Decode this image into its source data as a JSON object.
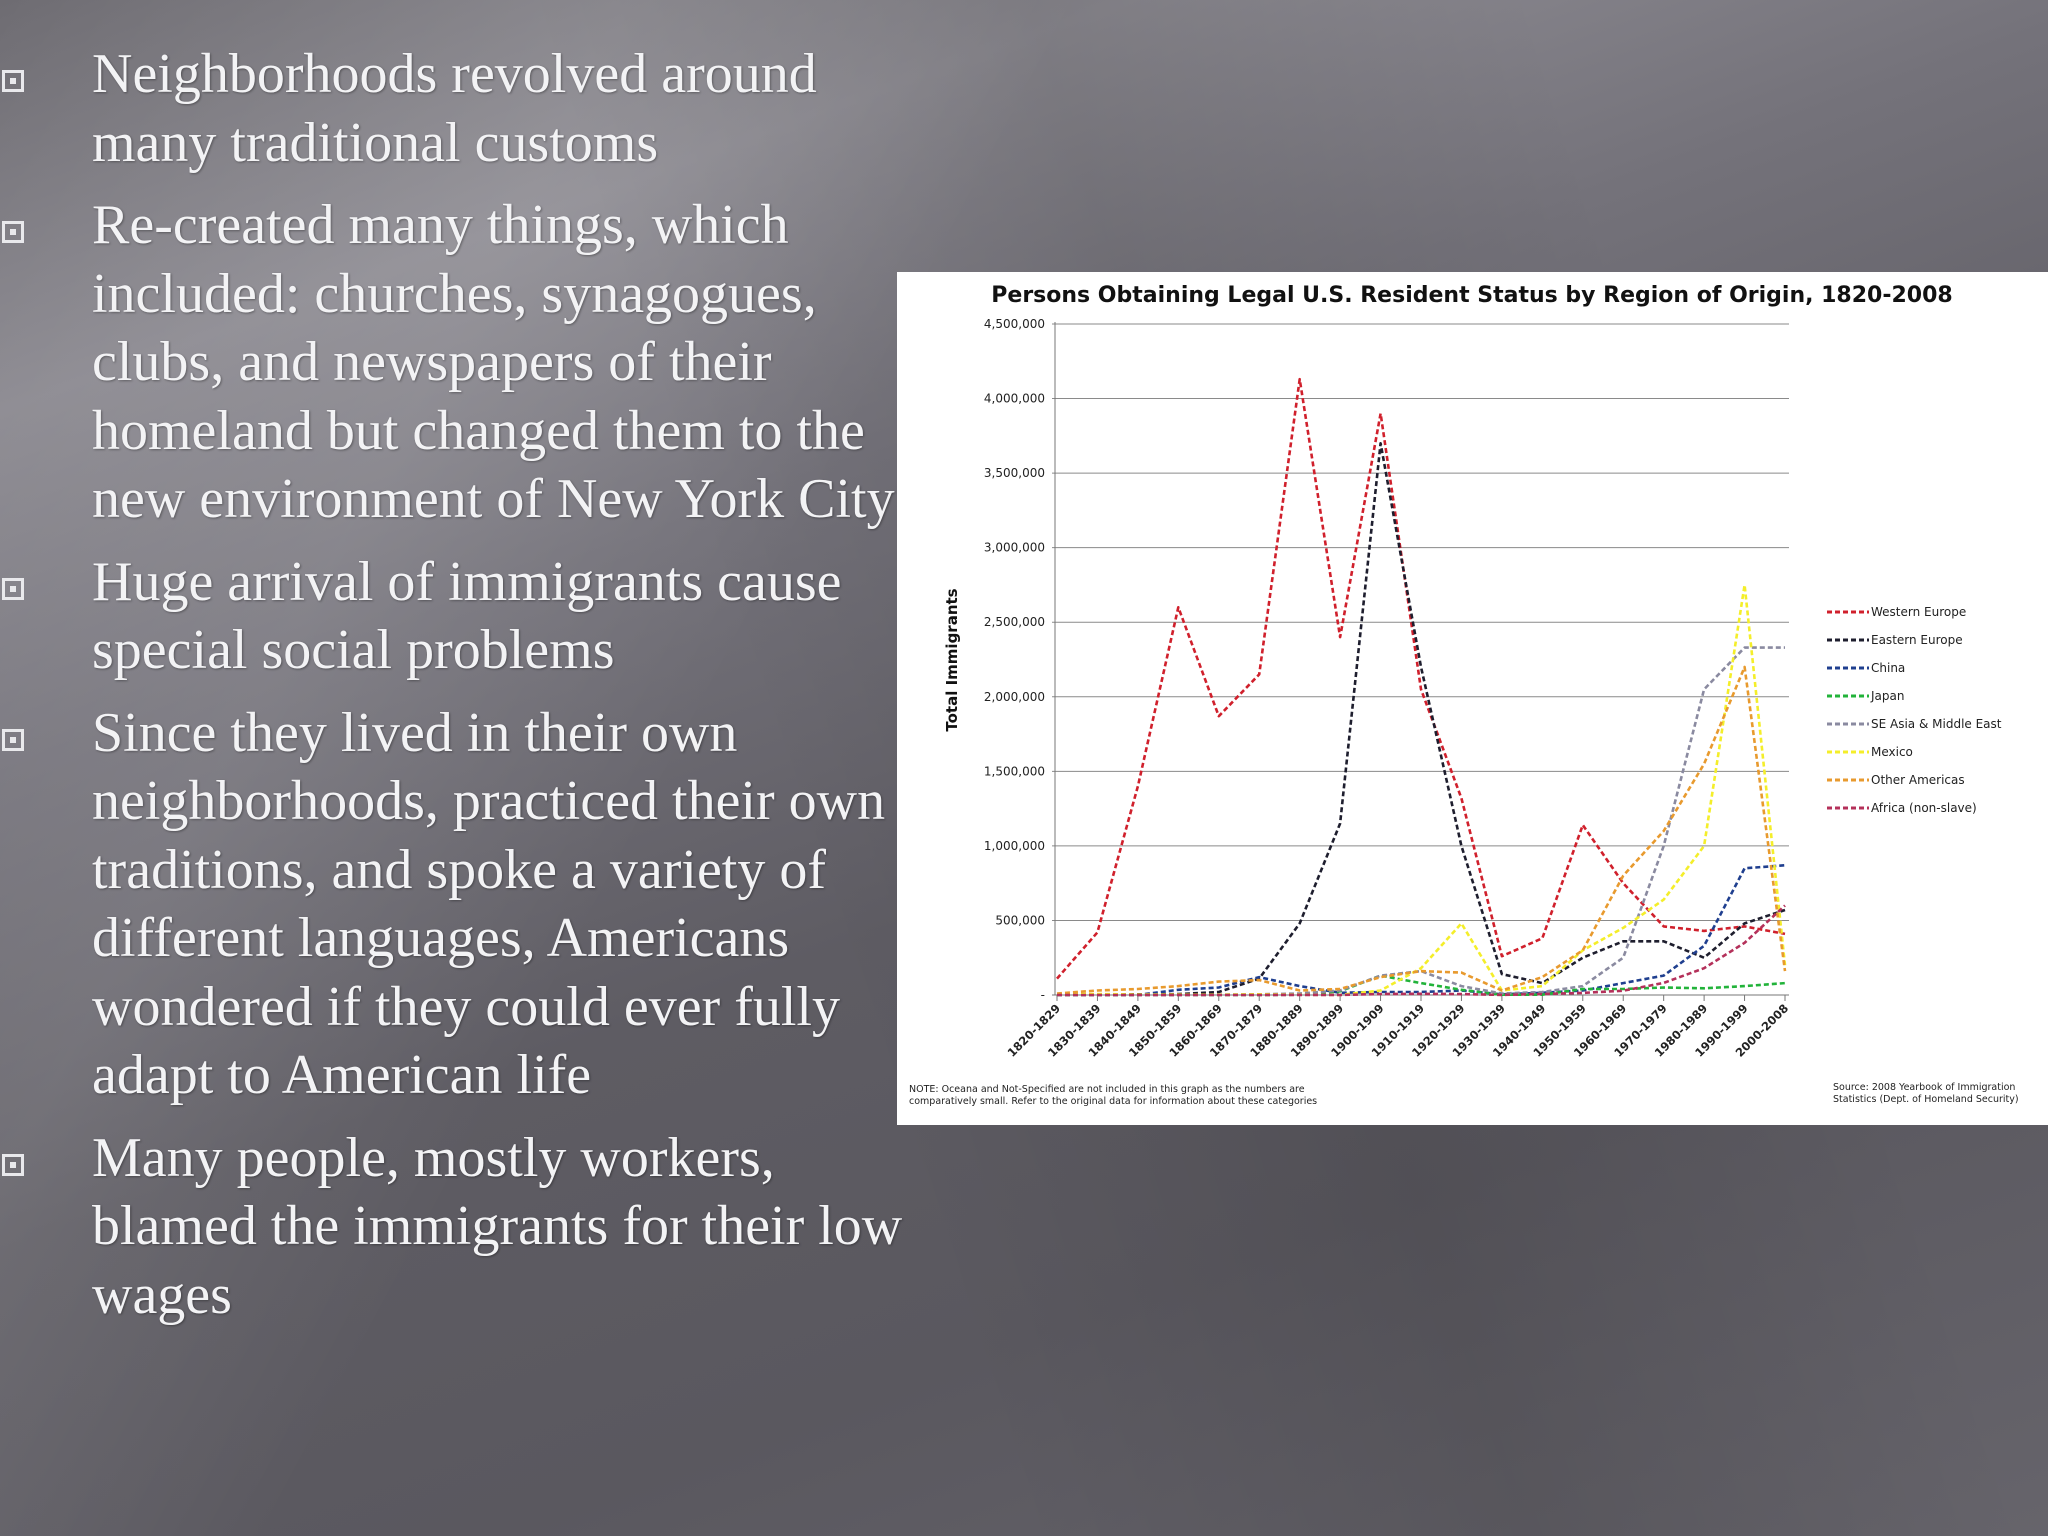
{
  "slide": {
    "bullets": [
      {
        "text": "Neighborhoods revolved around many traditional customs"
      },
      {
        "text": "Re-created many things, which included: churches, synagogues, clubs, and newspapers of their homeland but changed them to the new environment of New York City"
      },
      {
        "text": "Huge arrival of immigrants cause special social problems"
      },
      {
        "text": "Since they lived in their own neighborhoods, practiced their own traditions, and spoke a variety of different languages, Americans wondered if they could ever fully adapt to American life"
      },
      {
        "text": "Many people, mostly workers, blamed the immigrants for their low wages"
      }
    ],
    "bullet_icon": "square-bullet-icon"
  },
  "chart_data": {
    "type": "line",
    "title": "Persons Obtaining Legal U.S. Resident Status by Region of Origin, 1820-2008",
    "ylabel": "Total Immigrants",
    "xlabel": "",
    "ylim": [
      0,
      4500000
    ],
    "yticks": [
      "4,500,000",
      "4,000,000",
      "3,500,000",
      "3,000,000",
      "2,500,000",
      "2,000,000",
      "1,500,000",
      "1,000,000",
      "500,000",
      "-"
    ],
    "grid": true,
    "legend_position": "right",
    "line_style": "dashed",
    "categories": [
      "1820-1829",
      "1830-1839",
      "1840-1849",
      "1850-1859",
      "1860-1869",
      "1870-1879",
      "1880-1889",
      "1890-1899",
      "1900-1909",
      "1910-1919",
      "1920-1929",
      "1930-1939",
      "1940-1949",
      "1950-1959",
      "1960-1969",
      "1970-1979",
      "1980-1989",
      "1990-1999",
      "2000-2008"
    ],
    "series": [
      {
        "name": "Western Europe",
        "color": "#d0202c",
        "values": [
          110000,
          420000,
          1400000,
          2600000,
          1870000,
          2150000,
          4130000,
          2400000,
          3900000,
          2050000,
          1320000,
          260000,
          380000,
          1140000,
          750000,
          460000,
          430000,
          460000,
          410000
        ]
      },
      {
        "name": "Eastern Europe",
        "color": "#1e1e2e",
        "values": [
          2000,
          3000,
          5000,
          6000,
          20000,
          110000,
          480000,
          1150000,
          3700000,
          2200000,
          1000000,
          140000,
          80000,
          250000,
          360000,
          360000,
          250000,
          480000,
          570000
        ]
      },
      {
        "name": "China",
        "color": "#1f3f8f",
        "values": [
          0,
          0,
          0,
          35000,
          50000,
          120000,
          60000,
          15000,
          20000,
          20000,
          30000,
          5000,
          15000,
          30000,
          80000,
          130000,
          330000,
          850000,
          870000
        ]
      },
      {
        "name": "Japan",
        "color": "#22b33a",
        "values": [
          0,
          0,
          0,
          0,
          0,
          0,
          2000,
          25000,
          130000,
          80000,
          35000,
          2000,
          2000,
          40000,
          40000,
          50000,
          45000,
          60000,
          80000
        ]
      },
      {
        "name": "SE Asia & Middle East",
        "color": "#8a8aa0",
        "values": [
          0,
          0,
          0,
          1000,
          2000,
          5000,
          10000,
          30000,
          130000,
          160000,
          60000,
          10000,
          20000,
          60000,
          250000,
          1000000,
          2050000,
          2330000,
          2330000
        ]
      },
      {
        "name": "Mexico",
        "color": "#f4ee2a",
        "values": [
          5000,
          7000,
          3000,
          3000,
          2000,
          5000,
          2000,
          1000,
          30000,
          180000,
          480000,
          30000,
          60000,
          300000,
          450000,
          640000,
          1000000,
          2750000,
          200000
        ]
      },
      {
        "name": "Other Americas",
        "color": "#e89a2e",
        "values": [
          10000,
          30000,
          40000,
          60000,
          90000,
          100000,
          30000,
          40000,
          120000,
          160000,
          150000,
          30000,
          120000,
          300000,
          800000,
          1100000,
          1550000,
          2200000,
          160000
        ]
      },
      {
        "name": "Africa (non-slave)",
        "color": "#b4305a",
        "values": [
          0,
          0,
          0,
          0,
          0,
          0,
          1000,
          0,
          7000,
          8000,
          6000,
          1000,
          7000,
          14000,
          29000,
          81000,
          180000,
          350000,
          600000
        ]
      }
    ],
    "note": "NOTE: Oceana and Not-Specified are not included in this graph as the numbers are comparatively small. Refer to the original data for information about these categories",
    "source": "Source: 2008 Yearbook of Immigration Statistics (Dept. of Homeland Security)"
  }
}
